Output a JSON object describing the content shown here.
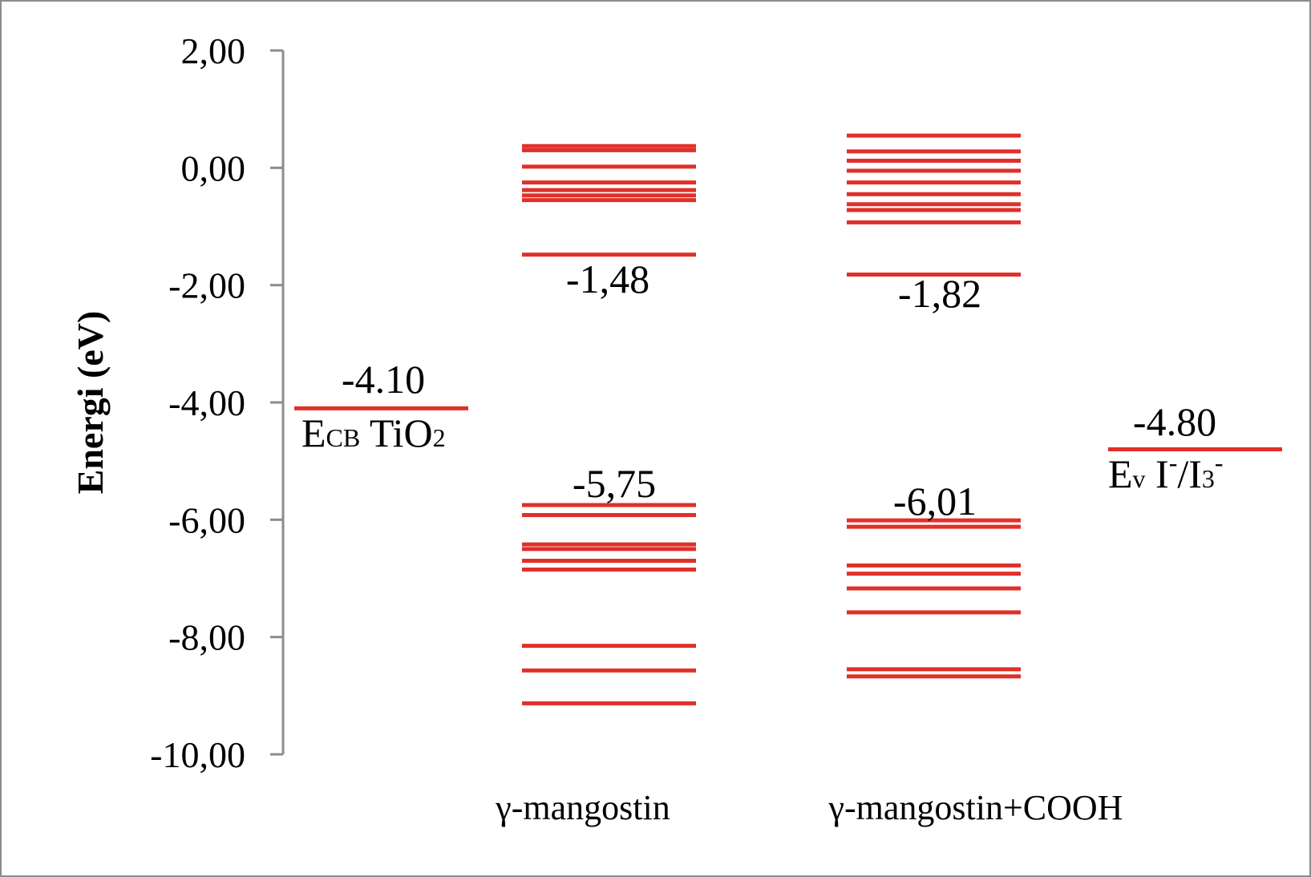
{
  "chart_data": {
    "type": "energy-level diagram",
    "ylabel": "Energi (eV)",
    "ylim": [
      -10,
      2
    ],
    "yticks": [
      "2,00",
      "0,00",
      "-2,00",
      "-4,00",
      "-6,00",
      "-8,00",
      "-10,00"
    ],
    "ytick_values": [
      2,
      0,
      -2,
      -4,
      -6,
      -8,
      -10
    ],
    "level_color": "#e0302a",
    "columns": [
      {
        "id": "tio2",
        "category": "",
        "levels": [
          -4.1
        ],
        "annotation_top": "-4.10",
        "annotation_top_value": -4.1,
        "label_main": "E",
        "label_sub": "CB",
        "label_rest": " TiO",
        "label_sub2": "2"
      },
      {
        "id": "gm",
        "category": "γ-mangostin",
        "unoccupied": [
          0.37,
          0.3,
          0.02,
          -0.25,
          -0.38,
          -0.47,
          -0.55,
          -1.48
        ],
        "occupied": [
          -5.75,
          -5.92,
          -6.42,
          -6.5,
          -6.7,
          -6.85,
          -8.15,
          -8.57,
          -9.13
        ],
        "lumo_label": "-1,48",
        "lumo_value": -1.48,
        "homo_label": "-5,75",
        "homo_value": -5.75
      },
      {
        "id": "gmc",
        "category": "γ-mangostin+COOH",
        "unoccupied": [
          0.55,
          0.28,
          0.12,
          -0.05,
          -0.25,
          -0.45,
          -0.62,
          -0.72,
          -0.93,
          -1.82
        ],
        "occupied": [
          -6.01,
          -6.12,
          -6.78,
          -6.92,
          -7.17,
          -7.58,
          -8.55,
          -8.67
        ],
        "lumo_label": "-1,82",
        "lumo_value": -1.82,
        "homo_label": "-6,01",
        "homo_value": -6.01
      },
      {
        "id": "redox",
        "category": "",
        "levels": [
          -4.8
        ],
        "annotation_top": "-4.80",
        "annotation_top_value": -4.8,
        "label_main": "E",
        "label_sub": "v",
        "label_rest": " I",
        "label_sup": "-",
        "label_rest2": "/I",
        "label_sub2": "3",
        "label_sup2": "-"
      }
    ]
  }
}
